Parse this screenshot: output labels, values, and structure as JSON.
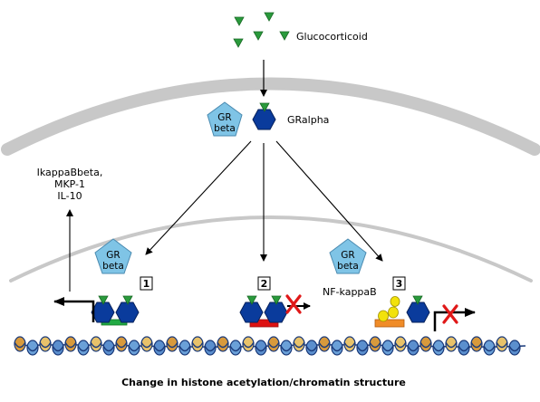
{
  "ligand_label": "Glucocorticoid",
  "gr_alpha_label": "GRalpha",
  "gr_beta_label": {
    "line1": "GR",
    "line2": "beta"
  },
  "induced_genes": [
    "IkappaBbeta,",
    "MKP-1",
    "IL-10"
  ],
  "nfkb_label": "NF-kappaB",
  "mechanisms": [
    "1",
    "2",
    "3"
  ],
  "caption": "Change in histone acetylation/chromatin structure",
  "colors": {
    "membrane": "#c8c8c8",
    "gr_alpha": "#0a3b9c",
    "gr_beta": "#7fc4e6",
    "ligand": "#2a9a3c",
    "gre_bar": "#22aa44",
    "ngre_bar": "#dd1111",
    "nfkb_bar": "#f08c28",
    "nfkb_ball": "#f2e20a",
    "block_x": "#e01818"
  }
}
